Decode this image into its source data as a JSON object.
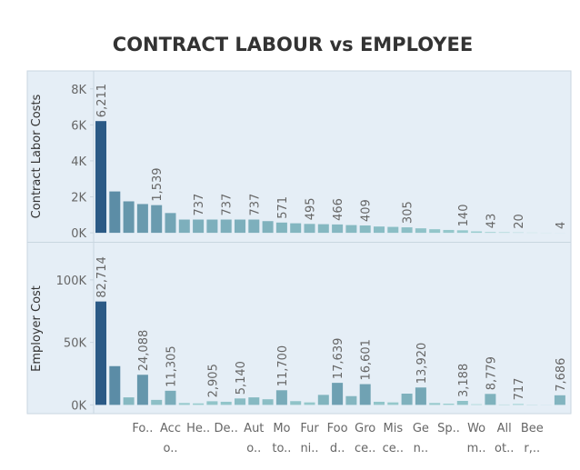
{
  "chart_data": {
    "type": "bar",
    "title": "CONTRACT LABOUR vs EMPLOYEE",
    "categories": [
      null,
      null,
      null,
      [
        "Fo.."
      ],
      null,
      [
        "Acc",
        "o.."
      ],
      null,
      [
        "He.."
      ],
      null,
      [
        "De.."
      ],
      null,
      [
        "Aut",
        "o.."
      ],
      null,
      [
        "Mo",
        "to.."
      ],
      null,
      [
        "Fur",
        "ni.."
      ],
      null,
      [
        "Foo",
        "d.."
      ],
      null,
      [
        "Gro",
        "ce.."
      ],
      null,
      [
        "Mis",
        "ce.."
      ],
      null,
      [
        "Ge",
        "n.."
      ],
      null,
      [
        "Sp.."
      ],
      null,
      [
        "Wo",
        "m.."
      ],
      null,
      [
        "All",
        "ot.."
      ],
      null,
      [
        "Bee",
        "r,.."
      ],
      null,
      null
    ],
    "color_range": [
      "#a8dcd8",
      "#2b5a86"
    ],
    "panels": [
      {
        "y_label": "Contract Labor Costs",
        "ylim": [
          -500,
          9000
        ],
        "yticks": [
          {
            "value": 0,
            "label": "0K"
          },
          {
            "value": 2000,
            "label": "2K"
          },
          {
            "value": 4000,
            "label": "4K"
          },
          {
            "value": 6000,
            "label": "6K"
          },
          {
            "value": 8000,
            "label": "8K"
          }
        ],
        "values": [
          6211,
          2300,
          1750,
          1600,
          1539,
          1100,
          737,
          737,
          737,
          737,
          737,
          737,
          650,
          571,
          530,
          495,
          480,
          466,
          430,
          409,
          350,
          330,
          305,
          250,
          200,
          160,
          140,
          80,
          43,
          30,
          20,
          10,
          6,
          4
        ],
        "value_labels": [
          "6,211",
          null,
          null,
          null,
          "1,539",
          null,
          null,
          "737",
          null,
          "737",
          null,
          "737",
          null,
          "571",
          null,
          "495",
          null,
          "466",
          null,
          "409",
          null,
          null,
          "305",
          null,
          null,
          null,
          "140",
          null,
          "43",
          null,
          "20",
          null,
          null,
          "4"
        ]
      },
      {
        "y_label": "Employer Cost",
        "ylim": [
          -7000,
          129000
        ],
        "yticks": [
          {
            "value": 0,
            "label": "0K"
          },
          {
            "value": 50000,
            "label": "50K"
          },
          {
            "value": 100000,
            "label": "100K"
          }
        ],
        "values": [
          82714,
          31000,
          6000,
          24088,
          4000,
          11305,
          1500,
          1200,
          2905,
          2500,
          5140,
          6000,
          4500,
          11700,
          3000,
          2000,
          8000,
          17639,
          7000,
          16601,
          2500,
          2000,
          9000,
          13920,
          1500,
          1000,
          3188,
          500,
          8779,
          300,
          717,
          200,
          100,
          7686
        ],
        "value_labels": [
          "82,714",
          null,
          null,
          "24,088",
          null,
          "11,305",
          null,
          null,
          "2,905",
          null,
          "5,140",
          null,
          null,
          "11,700",
          null,
          null,
          null,
          "17,639",
          null,
          "16,601",
          null,
          null,
          null,
          "13,920",
          null,
          null,
          "3,188",
          null,
          "8,779",
          null,
          "717",
          null,
          null,
          "7,686"
        ]
      }
    ]
  }
}
